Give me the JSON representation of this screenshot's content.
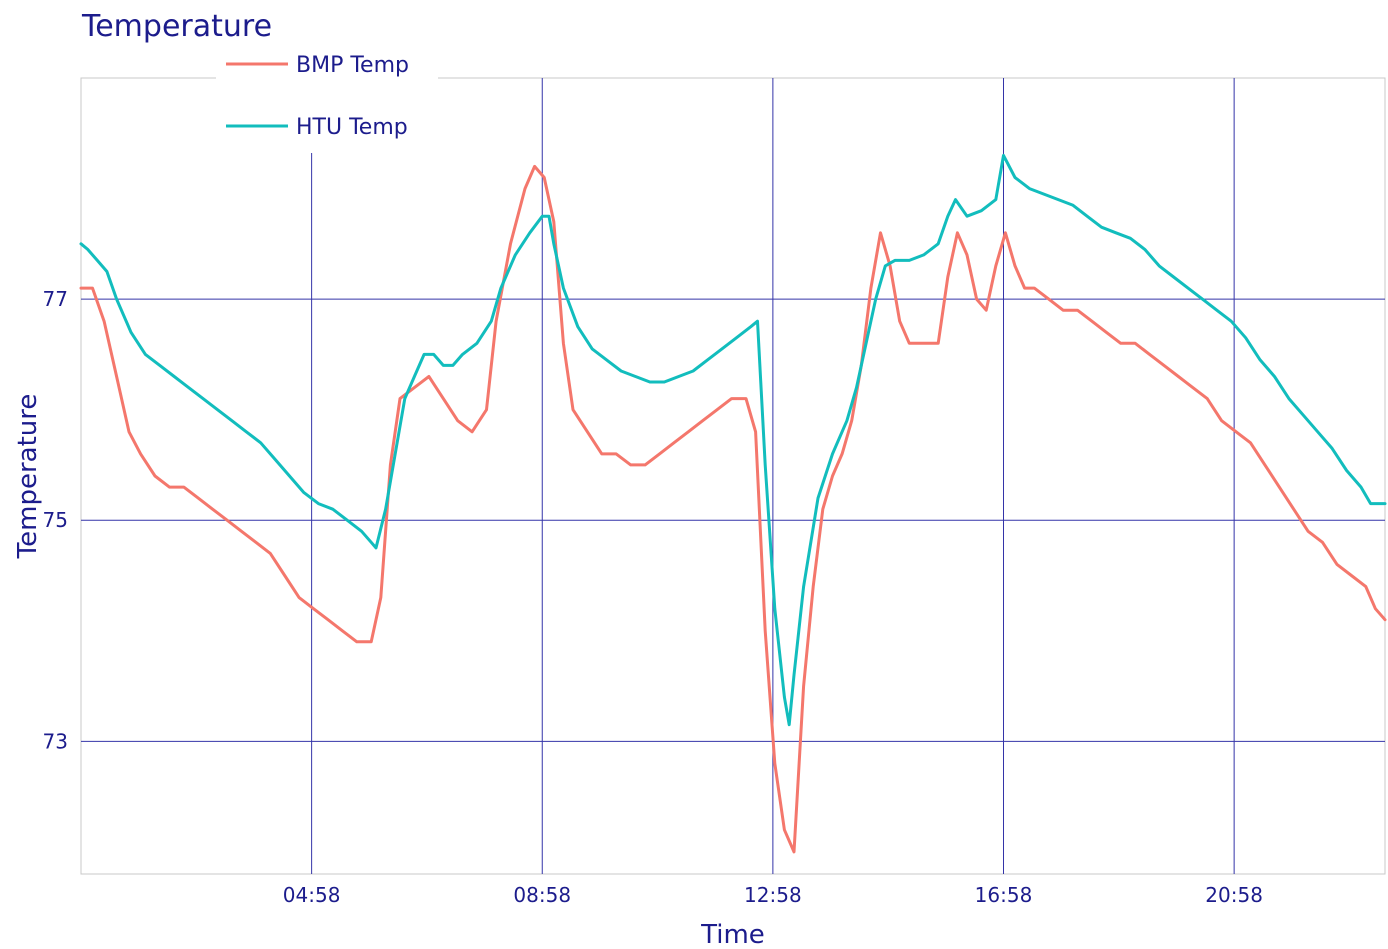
{
  "colors": {
    "text": "#1c1c8c",
    "grid": "#3434a8",
    "frame": "#c8c8c8",
    "bmp": "#f4776c",
    "htu": "#12bdbd"
  },
  "chart_data": {
    "type": "line",
    "title": "Temperature",
    "xlabel": "Time",
    "ylabel": "Temperature",
    "x_range": [
      "00:58",
      "23:35"
    ],
    "x_ticks": [
      "04:58",
      "08:58",
      "12:58",
      "16:58",
      "20:58"
    ],
    "y_ticks": [
      73,
      75,
      77
    ],
    "ylim": [
      71.8,
      79.0
    ],
    "grid": true,
    "legend_position": "top-left",
    "series": [
      {
        "name": "BMP Temp",
        "points": [
          [
            "00:58",
            77.1
          ],
          [
            "01:10",
            77.1
          ],
          [
            "01:22",
            76.8
          ],
          [
            "01:35",
            76.3
          ],
          [
            "01:48",
            75.8
          ],
          [
            "02:00",
            75.6
          ],
          [
            "02:15",
            75.4
          ],
          [
            "02:30",
            75.3
          ],
          [
            "02:45",
            75.3
          ],
          [
            "03:00",
            75.2
          ],
          [
            "03:15",
            75.1
          ],
          [
            "03:30",
            75.0
          ],
          [
            "03:45",
            74.9
          ],
          [
            "04:00",
            74.8
          ],
          [
            "04:15",
            74.7
          ],
          [
            "04:30",
            74.5
          ],
          [
            "04:45",
            74.3
          ],
          [
            "05:00",
            74.2
          ],
          [
            "05:15",
            74.1
          ],
          [
            "05:30",
            74.0
          ],
          [
            "05:45",
            73.9
          ],
          [
            "06:00",
            73.9
          ],
          [
            "06:10",
            74.3
          ],
          [
            "06:20",
            75.5
          ],
          [
            "06:30",
            76.1
          ],
          [
            "06:45",
            76.2
          ],
          [
            "07:00",
            76.3
          ],
          [
            "07:15",
            76.1
          ],
          [
            "07:30",
            75.9
          ],
          [
            "07:45",
            75.8
          ],
          [
            "08:00",
            76.0
          ],
          [
            "08:10",
            76.8
          ],
          [
            "08:25",
            77.5
          ],
          [
            "08:40",
            78.0
          ],
          [
            "08:50",
            78.2
          ],
          [
            "09:00",
            78.1
          ],
          [
            "09:10",
            77.7
          ],
          [
            "09:20",
            76.6
          ],
          [
            "09:30",
            76.0
          ],
          [
            "09:45",
            75.8
          ],
          [
            "10:00",
            75.6
          ],
          [
            "10:15",
            75.6
          ],
          [
            "10:30",
            75.5
          ],
          [
            "10:45",
            75.5
          ],
          [
            "11:00",
            75.6
          ],
          [
            "11:15",
            75.7
          ],
          [
            "11:30",
            75.8
          ],
          [
            "11:45",
            75.9
          ],
          [
            "12:00",
            76.0
          ],
          [
            "12:15",
            76.1
          ],
          [
            "12:30",
            76.1
          ],
          [
            "12:40",
            75.8
          ],
          [
            "12:50",
            74.0
          ],
          [
            "13:00",
            72.8
          ],
          [
            "13:10",
            72.2
          ],
          [
            "13:20",
            72.0
          ],
          [
            "13:30",
            73.5
          ],
          [
            "13:40",
            74.4
          ],
          [
            "13:50",
            75.1
          ],
          [
            "14:00",
            75.4
          ],
          [
            "14:10",
            75.6
          ],
          [
            "14:20",
            75.9
          ],
          [
            "14:30",
            76.4
          ],
          [
            "14:40",
            77.1
          ],
          [
            "14:50",
            77.6
          ],
          [
            "15:00",
            77.3
          ],
          [
            "15:10",
            76.8
          ],
          [
            "15:20",
            76.6
          ],
          [
            "15:30",
            76.6
          ],
          [
            "15:40",
            76.6
          ],
          [
            "15:50",
            76.6
          ],
          [
            "16:00",
            77.2
          ],
          [
            "16:10",
            77.6
          ],
          [
            "16:20",
            77.4
          ],
          [
            "16:30",
            77.0
          ],
          [
            "16:40",
            76.9
          ],
          [
            "16:50",
            77.3
          ],
          [
            "17:00",
            77.6
          ],
          [
            "17:10",
            77.3
          ],
          [
            "17:20",
            77.1
          ],
          [
            "17:30",
            77.1
          ],
          [
            "17:45",
            77.0
          ],
          [
            "18:00",
            76.9
          ],
          [
            "18:15",
            76.9
          ],
          [
            "18:30",
            76.8
          ],
          [
            "18:45",
            76.7
          ],
          [
            "19:00",
            76.6
          ],
          [
            "19:15",
            76.6
          ],
          [
            "19:30",
            76.5
          ],
          [
            "19:45",
            76.4
          ],
          [
            "20:00",
            76.3
          ],
          [
            "20:15",
            76.2
          ],
          [
            "20:30",
            76.1
          ],
          [
            "20:45",
            75.9
          ],
          [
            "21:00",
            75.8
          ],
          [
            "21:15",
            75.7
          ],
          [
            "21:30",
            75.5
          ],
          [
            "21:45",
            75.3
          ],
          [
            "22:00",
            75.1
          ],
          [
            "22:15",
            74.9
          ],
          [
            "22:30",
            74.8
          ],
          [
            "22:45",
            74.6
          ],
          [
            "23:00",
            74.5
          ],
          [
            "23:15",
            74.4
          ],
          [
            "23:25",
            74.2
          ],
          [
            "23:35",
            74.1
          ]
        ]
      },
      {
        "name": "HTU Temp",
        "points": [
          [
            "00:58",
            77.5
          ],
          [
            "01:05",
            77.45
          ],
          [
            "01:15",
            77.35
          ],
          [
            "01:25",
            77.25
          ],
          [
            "01:35",
            77.0
          ],
          [
            "01:50",
            76.7
          ],
          [
            "02:05",
            76.5
          ],
          [
            "02:20",
            76.4
          ],
          [
            "02:35",
            76.3
          ],
          [
            "02:50",
            76.2
          ],
          [
            "03:05",
            76.1
          ],
          [
            "03:20",
            76.0
          ],
          [
            "03:35",
            75.9
          ],
          [
            "03:50",
            75.8
          ],
          [
            "04:05",
            75.7
          ],
          [
            "04:20",
            75.55
          ],
          [
            "04:35",
            75.4
          ],
          [
            "04:50",
            75.25
          ],
          [
            "05:05",
            75.15
          ],
          [
            "05:20",
            75.1
          ],
          [
            "05:35",
            75.0
          ],
          [
            "05:50",
            74.9
          ],
          [
            "06:00",
            74.8
          ],
          [
            "06:05",
            74.75
          ],
          [
            "06:15",
            75.1
          ],
          [
            "06:25",
            75.6
          ],
          [
            "06:35",
            76.1
          ],
          [
            "06:45",
            76.3
          ],
          [
            "06:55",
            76.5
          ],
          [
            "07:05",
            76.5
          ],
          [
            "07:15",
            76.4
          ],
          [
            "07:25",
            76.4
          ],
          [
            "07:35",
            76.5
          ],
          [
            "07:50",
            76.6
          ],
          [
            "08:05",
            76.8
          ],
          [
            "08:15",
            77.1
          ],
          [
            "08:30",
            77.4
          ],
          [
            "08:45",
            77.6
          ],
          [
            "08:58",
            77.75
          ],
          [
            "09:05",
            77.75
          ],
          [
            "09:10",
            77.5
          ],
          [
            "09:20",
            77.1
          ],
          [
            "09:35",
            76.75
          ],
          [
            "09:50",
            76.55
          ],
          [
            "10:05",
            76.45
          ],
          [
            "10:20",
            76.35
          ],
          [
            "10:35",
            76.3
          ],
          [
            "10:50",
            76.25
          ],
          [
            "11:05",
            76.25
          ],
          [
            "11:20",
            76.3
          ],
          [
            "11:35",
            76.35
          ],
          [
            "11:50",
            76.45
          ],
          [
            "12:05",
            76.55
          ],
          [
            "12:20",
            76.65
          ],
          [
            "12:35",
            76.75
          ],
          [
            "12:42",
            76.8
          ],
          [
            "12:50",
            75.5
          ],
          [
            "13:00",
            74.2
          ],
          [
            "13:10",
            73.4
          ],
          [
            "13:15",
            73.15
          ],
          [
            "13:20",
            73.6
          ],
          [
            "13:30",
            74.4
          ],
          [
            "13:45",
            75.2
          ],
          [
            "14:00",
            75.6
          ],
          [
            "14:15",
            75.9
          ],
          [
            "14:25",
            76.2
          ],
          [
            "14:35",
            76.6
          ],
          [
            "14:45",
            77.0
          ],
          [
            "14:55",
            77.3
          ],
          [
            "15:05",
            77.35
          ],
          [
            "15:20",
            77.35
          ],
          [
            "15:35",
            77.4
          ],
          [
            "15:50",
            77.5
          ],
          [
            "16:00",
            77.75
          ],
          [
            "16:08",
            77.9
          ],
          [
            "16:20",
            77.75
          ],
          [
            "16:35",
            77.8
          ],
          [
            "16:50",
            77.9
          ],
          [
            "16:58",
            78.3
          ],
          [
            "17:10",
            78.1
          ],
          [
            "17:25",
            78.0
          ],
          [
            "17:40",
            77.95
          ],
          [
            "17:55",
            77.9
          ],
          [
            "18:10",
            77.85
          ],
          [
            "18:25",
            77.75
          ],
          [
            "18:40",
            77.65
          ],
          [
            "18:55",
            77.6
          ],
          [
            "19:10",
            77.55
          ],
          [
            "19:25",
            77.45
          ],
          [
            "19:40",
            77.3
          ],
          [
            "19:55",
            77.2
          ],
          [
            "20:10",
            77.1
          ],
          [
            "20:25",
            77.0
          ],
          [
            "20:40",
            76.9
          ],
          [
            "20:55",
            76.8
          ],
          [
            "21:10",
            76.65
          ],
          [
            "21:25",
            76.45
          ],
          [
            "21:40",
            76.3
          ],
          [
            "21:55",
            76.1
          ],
          [
            "22:10",
            75.95
          ],
          [
            "22:25",
            75.8
          ],
          [
            "22:40",
            75.65
          ],
          [
            "22:55",
            75.45
          ],
          [
            "23:10",
            75.3
          ],
          [
            "23:20",
            75.15
          ],
          [
            "23:30",
            75.15
          ],
          [
            "23:35",
            75.15
          ]
        ]
      }
    ]
  }
}
